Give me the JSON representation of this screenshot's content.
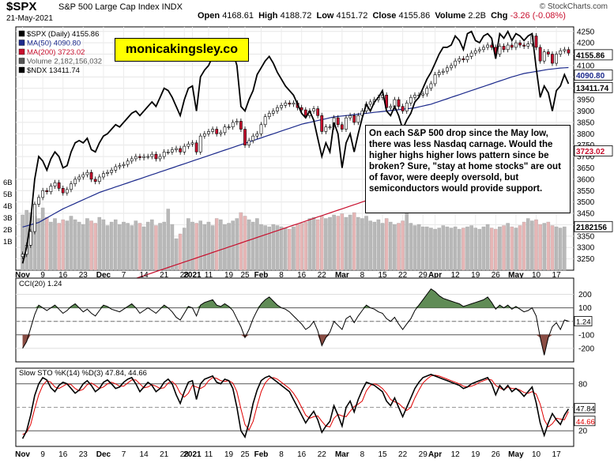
{
  "header": {
    "symbol": "$SPX",
    "name": "S&P 500 Large Cap Index INDX",
    "date": "21-May-2021",
    "open_label": "Open",
    "open": "4168.61",
    "high_label": "High",
    "high": "4188.72",
    "low_label": "Low",
    "low": "4151.72",
    "close_label": "Close",
    "close": "4155.86",
    "volume_label": "Volume",
    "volume": "2.2B",
    "chg_label": "Chg",
    "chg": "-3.26 (-0.08%)",
    "copyright": "© StockCharts.com"
  },
  "legend": {
    "price": "$SPX (Daily) 4155.86",
    "ma50": "MA(50) 4090.80",
    "ma200": "MA(200) 3723.02",
    "volume": "Volume 2,182,156,032",
    "ndx": "$NDX 13411.74"
  },
  "brand": "monicakingsley.co",
  "annotation": "On each S&P 500 drop since the May low, there was less Nasdaq carnage. Would the higher highs higher lows pattern since be broken? Sure, \"stay at home stocks\" are out of favor, were deeply oversold, but semiconductors would provide support.",
  "colors": {
    "up": "#ffffff",
    "down": "#c8102e",
    "ma50": "#1c2a8c",
    "ma200": "#c8102e",
    "ndx": "#000000",
    "volume_up": "#b8b8b8",
    "volume_down": "#e6b6b6",
    "cci_pos": "#4f7f44",
    "cci_neg": "#7d3a30",
    "stoch_k": "#000000",
    "stoch_d": "#e00000"
  },
  "chart_data": [
    {
      "type": "candlestick",
      "panel": "price",
      "ylim": [
        3200,
        4270
      ],
      "y_ticks": [
        3250,
        3300,
        3350,
        3400,
        3450,
        3500,
        3550,
        3600,
        3650,
        3700,
        3750,
        3800,
        3850,
        3900,
        3950,
        4000,
        4050,
        4100,
        4150,
        4200,
        4250
      ],
      "volume_ticks": [
        "1B",
        "2B",
        "3B",
        "4B",
        "5B",
        "6B"
      ],
      "x_labels": [
        "Nov",
        "9",
        "16",
        "23",
        "Dec",
        "7",
        "14",
        "21",
        "28",
        "2021",
        "11",
        "19",
        "25",
        "Feb",
        "8",
        "16",
        "22",
        "Mar",
        "8",
        "15",
        "22",
        "29",
        "Apr",
        "12",
        "19",
        "26",
        "May",
        "10",
        "17"
      ],
      "x_label_index": [
        0,
        5,
        10,
        15,
        20,
        25,
        30,
        35,
        40,
        42,
        46,
        51,
        55,
        59,
        64,
        69,
        74,
        79,
        84,
        89,
        94,
        99,
        102,
        107,
        112,
        117,
        122,
        127,
        132
      ],
      "price_close": [
        3270,
        3310,
        3370,
        3490,
        3520,
        3550,
        3545,
        3570,
        3585,
        3560,
        3540,
        3555,
        3580,
        3600,
        3610,
        3620,
        3630,
        3600,
        3590,
        3610,
        3625,
        3630,
        3640,
        3655,
        3660,
        3665,
        3680,
        3690,
        3700,
        3695,
        3700,
        3700,
        3710,
        3690,
        3700,
        3720,
        3720,
        3730,
        3735,
        3720,
        3745,
        3755,
        3760,
        3720,
        3790,
        3800,
        3810,
        3820,
        3800,
        3805,
        3830,
        3830,
        3850,
        3855,
        3820,
        3750,
        3770,
        3790,
        3800,
        3840,
        3875,
        3890,
        3900,
        3915,
        3925,
        3935,
        3930,
        3935,
        3915,
        3905,
        3880,
        3900,
        3910,
        3880,
        3810,
        3830,
        3830,
        3870,
        3840,
        3820,
        3870,
        3880,
        3850,
        3880,
        3900,
        3930,
        3940,
        3950,
        3960,
        3970,
        3915,
        3920,
        3950,
        3920,
        3900,
        3935,
        3960,
        3970,
        3970,
        3975,
        4000,
        4020,
        4060,
        4070,
        4075,
        4090,
        4100,
        4120,
        4130,
        4125,
        4140,
        4155,
        4165,
        4170,
        4180,
        4190,
        4180,
        4150,
        4185,
        4170,
        4190,
        4180,
        4200,
        4190,
        4185,
        4195,
        4230,
        4180,
        4120,
        4160,
        4150,
        4110,
        4150,
        4165,
        4170,
        4155
      ],
      "ma50": [
        3390,
        3395,
        3400,
        3405,
        3410,
        3420,
        3430,
        3440,
        3450,
        3460,
        3470,
        3478,
        3486,
        3494,
        3502,
        3510,
        3518,
        3526,
        3534,
        3542,
        3548,
        3554,
        3560,
        3566,
        3572,
        3578,
        3584,
        3590,
        3596,
        3602,
        3608,
        3614,
        3620,
        3626,
        3632,
        3638,
        3644,
        3650,
        3656,
        3662,
        3668,
        3674,
        3680,
        3686,
        3692,
        3698,
        3704,
        3710,
        3716,
        3722,
        3728,
        3734,
        3740,
        3746,
        3752,
        3758,
        3764,
        3770,
        3776,
        3782,
        3788,
        3794,
        3800,
        3806,
        3812,
        3818,
        3824,
        3830,
        3836,
        3842,
        3846,
        3850,
        3854,
        3858,
        3862,
        3866,
        3870,
        3874,
        3876,
        3878,
        3880,
        3882,
        3884,
        3886,
        3888,
        3890,
        3892,
        3894,
        3896,
        3898,
        3900,
        3902,
        3904,
        3906,
        3908,
        3910,
        3912,
        3914,
        3918,
        3922,
        3926,
        3930,
        3936,
        3942,
        3948,
        3954,
        3960,
        3966,
        3972,
        3978,
        3984,
        3990,
        3996,
        4002,
        4008,
        4014,
        4020,
        4026,
        4032,
        4038,
        4044,
        4050,
        4055,
        4060,
        4065,
        4068,
        4071,
        4074,
        4077,
        4080,
        4083,
        4085,
        4087,
        4089,
        4090,
        4091
      ],
      "ma200": [
        3000,
        3005,
        3010,
        3015,
        3020,
        3026,
        3032,
        3038,
        3044,
        3050,
        3056,
        3062,
        3068,
        3074,
        3080,
        3086,
        3092,
        3098,
        3104,
        3110,
        3116,
        3122,
        3128,
        3134,
        3140,
        3146,
        3152,
        3158,
        3164,
        3170,
        3176,
        3182,
        3188,
        3194,
        3200,
        3206,
        3212,
        3218,
        3224,
        3230,
        3236,
        3242,
        3248,
        3254,
        3260,
        3266,
        3272,
        3278,
        3284,
        3290,
        3296,
        3302,
        3308,
        3314,
        3320,
        3326,
        3332,
        3338,
        3344,
        3350,
        3356,
        3362,
        3368,
        3374,
        3380,
        3386,
        3392,
        3398,
        3404,
        3410,
        3416,
        3422,
        3428,
        3434,
        3440,
        3446,
        3452,
        3458,
        3464,
        3470,
        3476,
        3482,
        3488,
        3494,
        3500,
        3506,
        3512,
        3518,
        3524,
        3530,
        3536,
        3542,
        3548,
        3554,
        3560,
        3566,
        3572,
        3578,
        3584,
        3590,
        3596,
        3600,
        3605,
        3610,
        3615,
        3620,
        3625,
        3630,
        3635,
        3640,
        3645,
        3650,
        3655,
        3660,
        3665,
        3670,
        3675,
        3680,
        3684,
        3688,
        3692,
        3696,
        3700,
        3703,
        3706,
        3709,
        3712,
        3715,
        3717,
        3719,
        3720,
        3721,
        3722,
        3723
      ],
      "ndx_scaled": [
        3230,
        3300,
        3420,
        3600,
        3700,
        3680,
        3640,
        3690,
        3720,
        3700,
        3650,
        3660,
        3720,
        3760,
        3770,
        3760,
        3780,
        3730,
        3720,
        3760,
        3790,
        3800,
        3820,
        3840,
        3830,
        3850,
        3870,
        3890,
        3900,
        3880,
        3900,
        3920,
        3940,
        3920,
        3960,
        4000,
        3990,
        3960,
        3920,
        3880,
        3950,
        4000,
        4010,
        3900,
        4050,
        4080,
        4100,
        4140,
        4120,
        4130,
        4170,
        4180,
        4160,
        4100,
        3920,
        3900,
        3950,
        3990,
        4060,
        4090,
        4120,
        4140,
        4110,
        4070,
        4040,
        4010,
        3990,
        3970,
        3930,
        3890,
        3870,
        3900,
        3860,
        3780,
        3700,
        3760,
        3720,
        3850,
        3800,
        3650,
        3760,
        3800,
        3720,
        3800,
        3870,
        3930,
        3900,
        3940,
        3960,
        3990,
        3900,
        3880,
        3920,
        3880,
        3820,
        3860,
        3890,
        3940,
        3960,
        4000,
        4040,
        4070,
        4110,
        4150,
        4180,
        4180,
        4190,
        4230,
        4210,
        4170,
        4240,
        4250,
        4210,
        4200,
        4230,
        4240,
        4220,
        4130,
        4240,
        4220,
        4250,
        4210,
        4240,
        4230,
        4210,
        4230,
        4240,
        4090,
        3960,
        4010,
        3980,
        3900,
        3990,
        4010,
        4060,
        4020
      ],
      "volume_billion": [
        3.2,
        3.6,
        3.4,
        3.1,
        2.9,
        3.8,
        3.0,
        2.6,
        2.9,
        2.5,
        2.8,
        2.7,
        3.1,
        2.8,
        2.6,
        2.4,
        2.9,
        2.7,
        2.5,
        3.0,
        2.8,
        2.3,
        2.6,
        2.8,
        2.4,
        2.6,
        2.5,
        2.3,
        2.7,
        2.5,
        2.2,
        2.6,
        2.8,
        2.3,
        2.5,
        2.6,
        3.7,
        2.4,
        1.2,
        1.6,
        2.1,
        2.9,
        2.6,
        2.5,
        2.7,
        2.4,
        2.6,
        2.3,
        2.9,
        2.8,
        2.4,
        2.5,
        2.7,
        2.9,
        3.4,
        3.1,
        2.8,
        2.6,
        2.9,
        2.4,
        2.3,
        2.2,
        2.4,
        2.3,
        2.2,
        2.1,
        2.0,
        2.2,
        2.4,
        2.5,
        2.6,
        2.9,
        3.0,
        2.8,
        3.1,
        2.9,
        3.0,
        3.2,
        3.1,
        3.3,
        3.0,
        3.2,
        3.4,
        3.0,
        2.9,
        3.1,
        2.7,
        2.6,
        2.8,
        2.5,
        2.9,
        2.6,
        2.4,
        2.5,
        2.7,
        4.8,
        2.5,
        2.3,
        2.4,
        2.2,
        2.2,
        2.1,
        2.0,
        2.1,
        2.3,
        2.2,
        2.1,
        2.2,
        2.0,
        2.1,
        2.2,
        2.3,
        2.1,
        2.0,
        2.2,
        2.4,
        2.1,
        2.0,
        2.2,
        2.3,
        2.5,
        2.2,
        2.1,
        2.3,
        2.6,
        2.9,
        2.7,
        2.8,
        2.4,
        2.5,
        2.6,
        2.3,
        2.2,
        2.1,
        2.2
      ]
    },
    {
      "type": "area",
      "panel": "CCI(20)",
      "title": "CCI(20) 1.24",
      "ylim": [
        -300,
        320
      ],
      "y_ticks": [
        200,
        100,
        0,
        -100,
        -200
      ],
      "current": "1.24",
      "values": [
        -200,
        -150,
        -50,
        50,
        120,
        100,
        80,
        100,
        120,
        90,
        60,
        80,
        110,
        130,
        100,
        70,
        90,
        60,
        40,
        80,
        120,
        110,
        90,
        80,
        70,
        90,
        110,
        130,
        100,
        60,
        80,
        100,
        80,
        60,
        90,
        120,
        100,
        70,
        30,
        10,
        60,
        110,
        100,
        40,
        120,
        140,
        150,
        160,
        120,
        110,
        130,
        110,
        80,
        20,
        -40,
        -120,
        -60,
        20,
        80,
        130,
        160,
        180,
        150,
        120,
        100,
        90,
        70,
        40,
        10,
        -20,
        -60,
        -40,
        0,
        -70,
        -180,
        -120,
        -80,
        0,
        -30,
        -60,
        20,
        40,
        -10,
        40,
        80,
        120,
        100,
        90,
        70,
        60,
        20,
        0,
        30,
        -20,
        -60,
        -20,
        20,
        80,
        120,
        160,
        200,
        240,
        220,
        190,
        170,
        160,
        150,
        140,
        130,
        110,
        120,
        130,
        140,
        150,
        160,
        180,
        140,
        90,
        120,
        100,
        120,
        90,
        110,
        90,
        70,
        80,
        100,
        40,
        -120,
        -250,
        -120,
        -40,
        -10,
        -60,
        10,
        1.24
      ]
    },
    {
      "type": "line",
      "panel": "Slow STO",
      "title": "Slow STO %K(14) %D(3) 47.84, 44.66",
      "ylim": [
        0,
        100
      ],
      "y_ticks": [
        80,
        50,
        20
      ],
      "k_current": "47.84",
      "d_current": "44.66",
      "k": [
        10,
        20,
        40,
        65,
        80,
        88,
        85,
        75,
        70,
        78,
        82,
        80,
        74,
        68,
        72,
        80,
        84,
        78,
        70,
        74,
        82,
        85,
        80,
        74,
        76,
        82,
        86,
        88,
        80,
        70,
        76,
        82,
        78,
        70,
        74,
        82,
        86,
        80,
        66,
        55,
        70,
        82,
        84,
        60,
        80,
        86,
        88,
        90,
        82,
        80,
        86,
        84,
        74,
        50,
        20,
        12,
        30,
        55,
        72,
        84,
        88,
        90,
        86,
        82,
        78,
        74,
        70,
        60,
        50,
        40,
        30,
        38,
        45,
        34,
        18,
        26,
        32,
        52,
        40,
        26,
        50,
        58,
        44,
        60,
        72,
        82,
        80,
        78,
        74,
        70,
        58,
        52,
        62,
        50,
        38,
        50,
        62,
        74,
        82,
        88,
        90,
        92,
        90,
        88,
        86,
        84,
        82,
        80,
        78,
        74,
        76,
        80,
        82,
        84,
        86,
        88,
        80,
        66,
        78,
        72,
        78,
        70,
        74,
        70,
        64,
        70,
        76,
        56,
        30,
        14,
        30,
        42,
        34,
        28,
        40,
        47.84
      ],
      "d": [
        15,
        18,
        28,
        48,
        66,
        78,
        84,
        82,
        76,
        74,
        77,
        80,
        79,
        74,
        71,
        73,
        79,
        81,
        78,
        74,
        76,
        80,
        82,
        80,
        77,
        77,
        81,
        85,
        85,
        80,
        75,
        76,
        79,
        77,
        74,
        75,
        81,
        83,
        78,
        68,
        63,
        68,
        78,
        76,
        74,
        77,
        84,
        88,
        87,
        84,
        83,
        84,
        81,
        70,
        48,
        28,
        21,
        32,
        52,
        70,
        81,
        87,
        88,
        86,
        82,
        78,
        74,
        68,
        60,
        50,
        40,
        36,
        38,
        39,
        32,
        26,
        25,
        36,
        41,
        39,
        38,
        45,
        51,
        54,
        58,
        71,
        78,
        80,
        78,
        74,
        68,
        60,
        57,
        55,
        50,
        46,
        50,
        62,
        72,
        81,
        86,
        90,
        91,
        90,
        88,
        86,
        84,
        82,
        80,
        77,
        76,
        77,
        79,
        82,
        84,
        86,
        85,
        78,
        75,
        72,
        76,
        74,
        74,
        72,
        69,
        68,
        70,
        67,
        54,
        34,
        25,
        29,
        36,
        35,
        34,
        44.66
      ]
    }
  ]
}
